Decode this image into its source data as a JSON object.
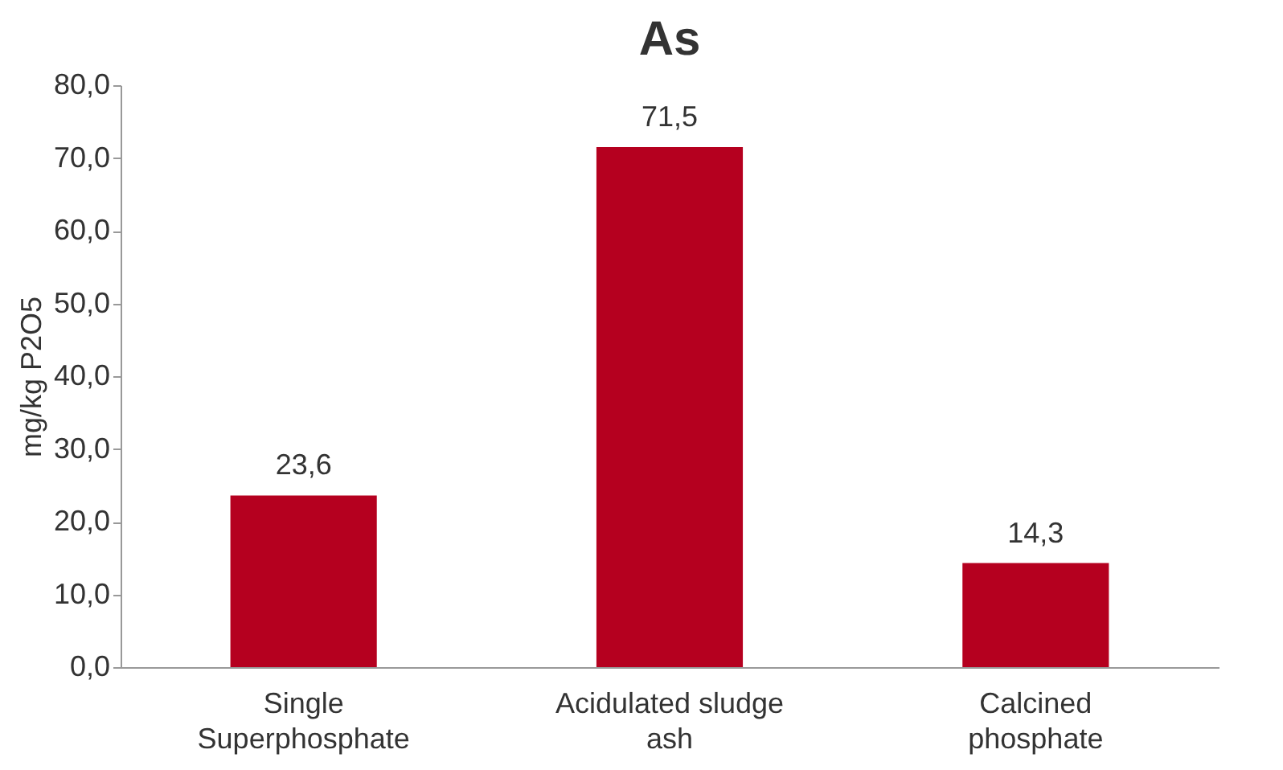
{
  "chart_data": {
    "type": "bar",
    "title": "As",
    "ylabel": "mg/kg P2O5",
    "categories": [
      "Single Superphosphate",
      "Acidulated sludge ash",
      "Calcined phosphate"
    ],
    "values": [
      23.6,
      71.5,
      14.3
    ],
    "value_labels": [
      "23,6",
      "71,5",
      "14,3"
    ],
    "color": "#b5001f",
    "ylim": [
      0,
      80
    ],
    "yticks": [
      {
        "value": 0,
        "label": "0,0"
      },
      {
        "value": 10,
        "label": "10,0"
      },
      {
        "value": 20,
        "label": "20,0"
      },
      {
        "value": 30,
        "label": "30,0"
      },
      {
        "value": 40,
        "label": "40,0"
      },
      {
        "value": 50,
        "label": "50,0"
      },
      {
        "value": 60,
        "label": "60,0"
      },
      {
        "value": 70,
        "label": "70,0"
      },
      {
        "value": 80,
        "label": "80,0"
      }
    ],
    "grid": false
  }
}
